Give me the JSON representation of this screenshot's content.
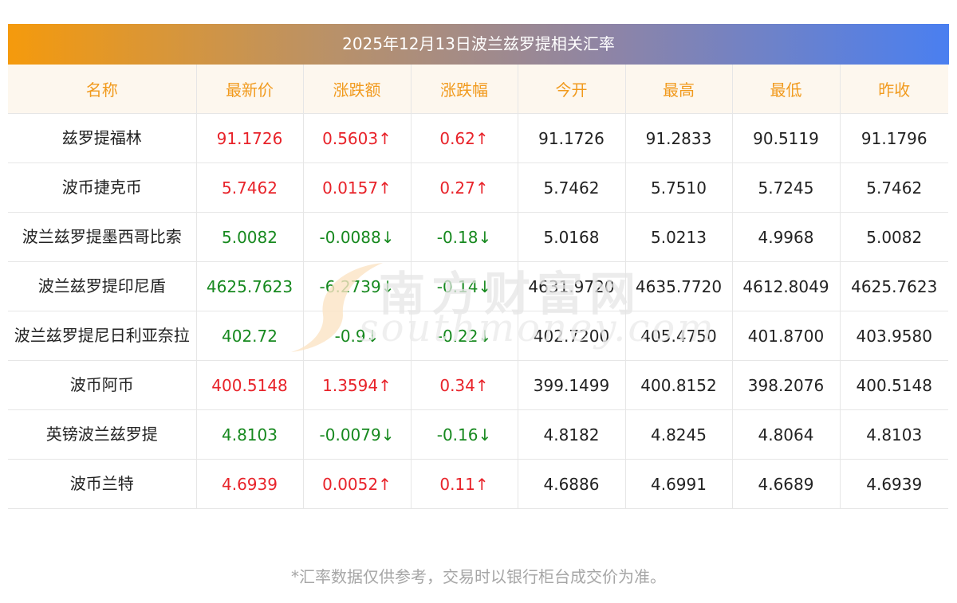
{
  "title": "2025年12月13日波兰兹罗提相关汇率",
  "columns": [
    "名称",
    "最新价",
    "涨跌额",
    "涨跌幅",
    "今开",
    "最高",
    "最低",
    "昨收"
  ],
  "rows": [
    {
      "name": "兹罗提福林",
      "latest": "91.1726",
      "change": "0.5603↑",
      "pct": "0.62↑",
      "open": "91.1726",
      "high": "91.2833",
      "low": "90.5119",
      "prev": "91.1796",
      "dir": "up"
    },
    {
      "name": "波币捷克币",
      "latest": "5.7462",
      "change": "0.0157↑",
      "pct": "0.27↑",
      "open": "5.7462",
      "high": "5.7510",
      "low": "5.7245",
      "prev": "5.7462",
      "dir": "up"
    },
    {
      "name": "波兰兹罗提墨西哥比索",
      "latest": "5.0082",
      "change": "-0.0088↓",
      "pct": "-0.18↓",
      "open": "5.0168",
      "high": "5.0213",
      "low": "4.9968",
      "prev": "5.0082",
      "dir": "down"
    },
    {
      "name": "波兰兹罗提印尼盾",
      "latest": "4625.7623",
      "change": "-6.2739↓",
      "pct": "-0.14↓",
      "open": "4631.9720",
      "high": "4635.7720",
      "low": "4612.8049",
      "prev": "4625.7623",
      "dir": "down"
    },
    {
      "name": "波兰兹罗提尼日利亚奈拉",
      "latest": "402.72",
      "change": "-0.9↓",
      "pct": "-0.22↓",
      "open": "402.7200",
      "high": "405.4750",
      "low": "401.8700",
      "prev": "403.9580",
      "dir": "down"
    },
    {
      "name": "波币阿币",
      "latest": "400.5148",
      "change": "1.3594↑",
      "pct": "0.34↑",
      "open": "399.1499",
      "high": "400.8152",
      "low": "398.2076",
      "prev": "400.5148",
      "dir": "up"
    },
    {
      "name": "英镑波兰兹罗提",
      "latest": "4.8103",
      "change": "-0.0079↓",
      "pct": "-0.16↓",
      "open": "4.8182",
      "high": "4.8245",
      "low": "4.8064",
      "prev": "4.8103",
      "dir": "down"
    },
    {
      "name": "波币兰特",
      "latest": "4.6939",
      "change": "0.0052↑",
      "pct": "0.11↑",
      "open": "4.6886",
      "high": "4.6991",
      "low": "4.6689",
      "prev": "4.6939",
      "dir": "up"
    }
  ],
  "watermark": {
    "cn": "南方财富网",
    "en": "southmoney.com"
  },
  "footnote": "*汇率数据仅供参考，交易时以银行柜台成交价为准。",
  "colors": {
    "up": "#e8232a",
    "down": "#17891f",
    "header_text": "#f19a1d",
    "header_bg": "#fdf7ee",
    "banner_start": "#f59a0c",
    "banner_end": "#4a7ff0"
  }
}
